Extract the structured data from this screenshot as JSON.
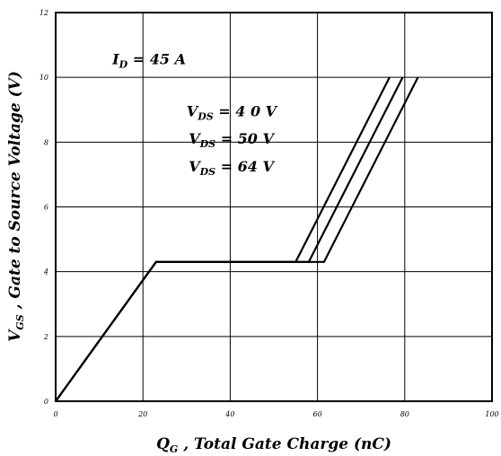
{
  "chart_data": {
    "type": "line",
    "xlabel": {
      "main": "Q",
      "sub": "G",
      "rest": " , Total Gate Charge (nC)"
    },
    "ylabel": {
      "main": "V",
      "sub": "GS",
      "rest": " , Gate to Source Voltage (V)"
    },
    "xlim": [
      0,
      100
    ],
    "ylim": [
      0,
      12
    ],
    "xticks": [
      0,
      20,
      40,
      60,
      80,
      100
    ],
    "yticks": [
      0,
      2,
      4,
      6,
      8,
      10,
      12
    ],
    "grid": true,
    "annotations": [
      {
        "main": "I",
        "sub": "D",
        "rest": " = 45 A",
        "x": 13,
        "y": 10.4
      },
      {
        "main": "V",
        "sub": "DS",
        "rest": " = 4 0 V",
        "x": 30,
        "y": 8.8
      },
      {
        "main": "V",
        "sub": "DS",
        "rest": " = 50 V",
        "x": 30.5,
        "y": 7.95
      },
      {
        "main": "V",
        "sub": "DS",
        "rest": " = 64 V",
        "x": 30.5,
        "y": 7.1
      }
    ],
    "series": [
      {
        "x": [
          0,
          23,
          55,
          76.5
        ],
        "y": [
          0,
          4.3,
          4.3,
          10
        ]
      },
      {
        "x": [
          0,
          23,
          58,
          79.5
        ],
        "y": [
          0,
          4.3,
          4.3,
          10
        ]
      },
      {
        "x": [
          0,
          23,
          61.5,
          83
        ],
        "y": [
          0,
          4.3,
          4.3,
          10
        ]
      }
    ]
  }
}
